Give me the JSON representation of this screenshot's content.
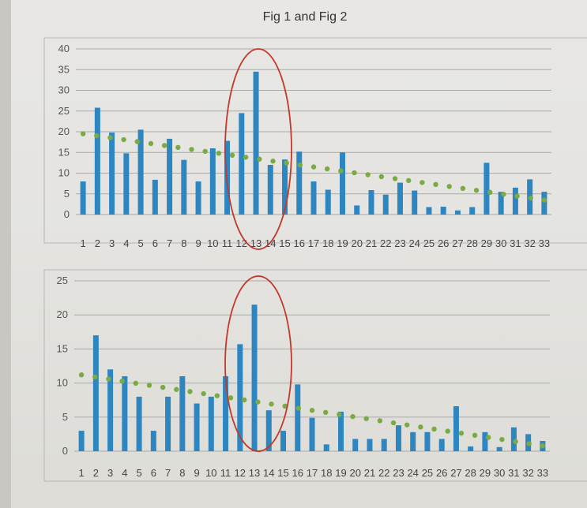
{
  "colors": {
    "bar": "#2e86c1",
    "trend": "#7aaa44",
    "ellipse": "#c0392b",
    "grid": "#a9a9a9",
    "frame": "#b5b5b5"
  },
  "chart_data": [
    {
      "type": "bar",
      "title": "Fig 1 and Fig 2",
      "categories": [
        "1",
        "2",
        "3",
        "4",
        "5",
        "6",
        "7",
        "8",
        "9",
        "10",
        "11",
        "12",
        "13",
        "14",
        "15",
        "16",
        "17",
        "18",
        "19",
        "20",
        "21",
        "22",
        "23",
        "24",
        "25",
        "26",
        "27",
        "28",
        "29",
        "30",
        "31",
        "32",
        "33"
      ],
      "values": [
        8,
        25.8,
        19.8,
        14.8,
        20.5,
        8.4,
        18.3,
        13.2,
        8,
        16,
        17.8,
        24.5,
        34.5,
        12,
        13.3,
        15.2,
        8,
        6,
        15,
        2.2,
        5.9,
        4.8,
        7.7,
        5.8,
        1.8,
        1.9,
        1,
        1.8,
        12.5,
        5.5,
        6.5,
        8.5,
        5.5
      ],
      "trendline": {
        "type": "linear",
        "start": 19.5,
        "end": 3.5
      },
      "ylim": [
        0,
        40
      ],
      "yticks": [
        "0",
        "5",
        "10",
        "15",
        "20",
        "25",
        "30",
        "35",
        "40"
      ],
      "grid": true,
      "annotation": "ellipse around categories 12–13"
    },
    {
      "type": "bar",
      "title": "",
      "categories": [
        "1",
        "2",
        "3",
        "4",
        "5",
        "6",
        "7",
        "8",
        "9",
        "10",
        "11",
        "12",
        "13",
        "14",
        "15",
        "16",
        "17",
        "18",
        "19",
        "20",
        "21",
        "22",
        "23",
        "24",
        "25",
        "26",
        "27",
        "28",
        "29",
        "30",
        "31",
        "32",
        "33"
      ],
      "values": [
        3,
        17,
        12,
        11,
        8,
        3,
        8,
        11,
        7,
        8,
        11,
        15.7,
        21.5,
        6,
        3,
        9.8,
        4.9,
        1,
        5.8,
        1.8,
        1.8,
        1.8,
        3.8,
        2.8,
        2.8,
        1.8,
        6.6,
        0.7,
        2.8,
        0.6,
        3.5,
        2.5,
        1.5
      ],
      "trendline": {
        "type": "linear",
        "start": 11.2,
        "end": 0.8
      },
      "ylim": [
        0,
        25
      ],
      "yticks": [
        "0",
        "5",
        "10",
        "15",
        "20",
        "25"
      ],
      "grid": true,
      "annotation": "ellipse around categories 12–13"
    }
  ]
}
